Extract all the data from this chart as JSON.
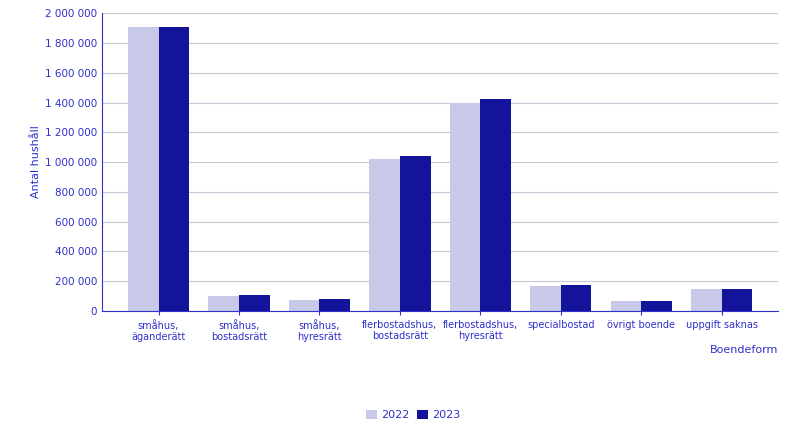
{
  "categories": [
    "småhus,\näganderätt",
    "småhus,\nbostadsrätt",
    "småhus,\nhyresrätt",
    "flerbostadshus,\nbostadsrätt",
    "flerbostadshus,\nhyresrätt",
    "specialbostad",
    "övrigt boende",
    "uppgift saknas"
  ],
  "values_2022": [
    1910000,
    100000,
    70000,
    1020000,
    1400000,
    165000,
    65000,
    145000
  ],
  "values_2023": [
    1910000,
    105000,
    78000,
    1040000,
    1425000,
    175000,
    65000,
    145000
  ],
  "color_2022": "#c8c8e8",
  "color_2023": "#14149a",
  "ylabel": "Antal hushåll",
  "xlabel": "Boendeform",
  "legend_2022": "2022",
  "legend_2023": "2023",
  "ylim": [
    0,
    2000000
  ],
  "yticks": [
    0,
    200000,
    400000,
    600000,
    800000,
    1000000,
    1200000,
    1400000,
    1600000,
    1800000,
    2000000
  ],
  "background_color": "#ffffff",
  "grid_color": "#c8c8d8",
  "text_color": "#3030cc",
  "bar_width": 0.38,
  "figwidth": 7.86,
  "figheight": 4.44,
  "dpi": 100
}
